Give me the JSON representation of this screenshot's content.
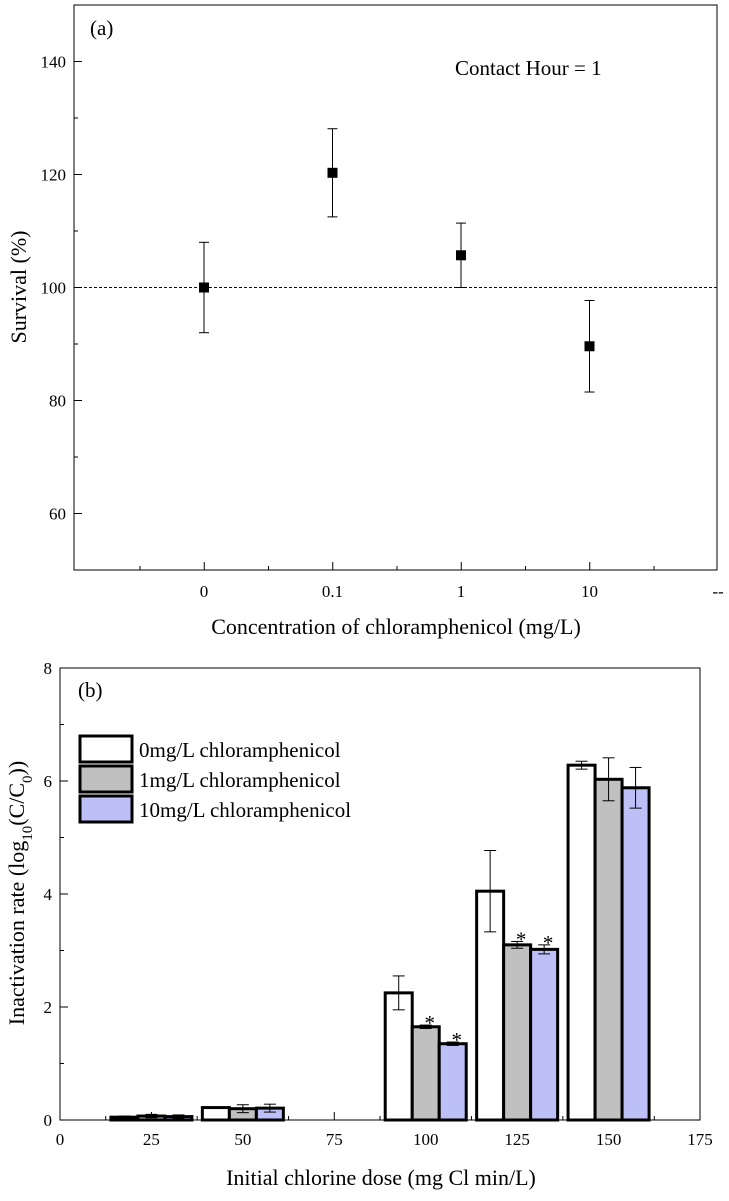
{
  "chart_data": [
    {
      "type": "scatter",
      "panel_label": "(a)",
      "annotation": "Contact Hour = 1",
      "xlabel": "Concentration of chloramphenicol (mg/L)",
      "ylabel": "Survival (%)",
      "categories": [
        "0",
        "0.1",
        "1",
        "10",
        "--"
      ],
      "ylim": [
        50,
        150
      ],
      "yticks": [
        "60",
        "80",
        "100",
        "120",
        "140"
      ],
      "reference_line": 100,
      "points": [
        {
          "x": "0",
          "y": 100,
          "err": 8
        },
        {
          "x": "0.1",
          "y": 120.3,
          "err": 7.8
        },
        {
          "x": "1",
          "y": 105.7,
          "err": 5.7
        },
        {
          "x": "10",
          "y": 89.6,
          "err": 8.1
        }
      ]
    },
    {
      "type": "bar",
      "panel_label": "(b)",
      "xlabel": "Initial chlorine dose (mg Cl min/L)",
      "ylabel": "Inactivation rate (log",
      "ylabel_sub": "10",
      "ylabel_mid": "(C/C",
      "ylabel_sub2": "0",
      "ylabel_end": "))",
      "xlim": [
        0,
        175
      ],
      "ylim": [
        0,
        8
      ],
      "xticks": [
        "0",
        "25",
        "50",
        "75",
        "100",
        "125",
        "150",
        "175"
      ],
      "yticks": [
        "0",
        "2",
        "4",
        "6",
        "8"
      ],
      "categories": [
        25,
        50,
        100,
        125,
        150
      ],
      "series": [
        {
          "name": "0mg/L chloramphenicol",
          "color": "#ffffff",
          "values": [
            0.05,
            0.22,
            2.25,
            4.05,
            6.28
          ],
          "errors": [
            0.02,
            0.0,
            0.3,
            0.72,
            0.07
          ],
          "marks": [
            "",
            "",
            "",
            "",
            ""
          ]
        },
        {
          "name": "1mg/L chloramphenicol",
          "color": "#c0c0c0",
          "values": [
            0.07,
            0.2,
            1.65,
            3.1,
            6.03
          ],
          "errors": [
            0.03,
            0.07,
            0.03,
            0.06,
            0.38
          ],
          "marks": [
            "",
            "",
            "*",
            "*",
            ""
          ]
        },
        {
          "name": "10mg/L chloramphenicol",
          "color": "#bcc0f6",
          "values": [
            0.06,
            0.21,
            1.35,
            3.02,
            5.88
          ],
          "errors": [
            0.03,
            0.07,
            0.03,
            0.08,
            0.36
          ],
          "marks": [
            "",
            "",
            "*",
            "*",
            ""
          ]
        }
      ]
    }
  ]
}
